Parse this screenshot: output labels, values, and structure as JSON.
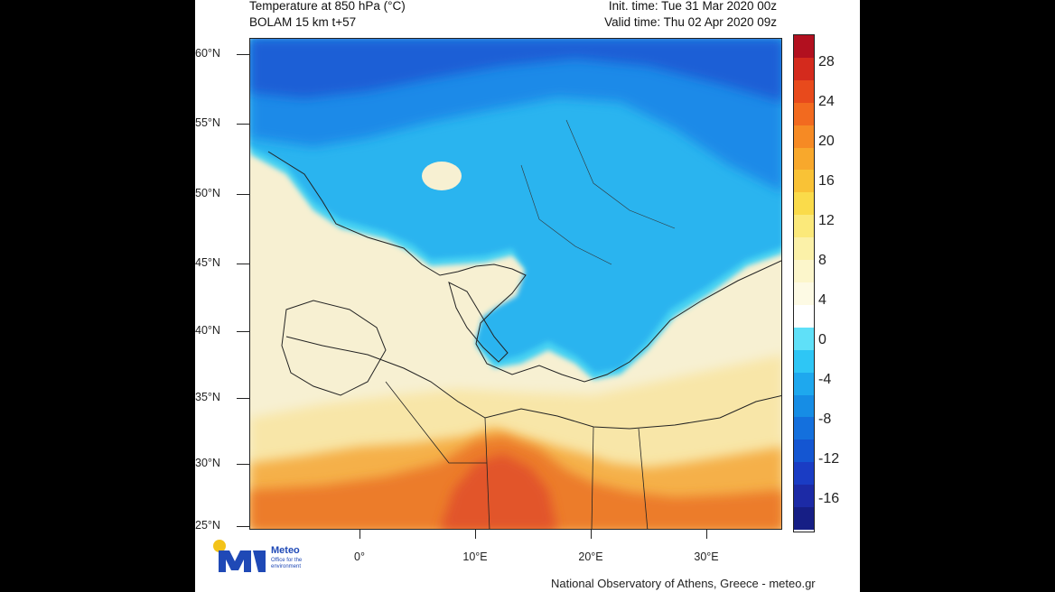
{
  "header": {
    "title_line1": "Temperature at 850 hPa (°C)",
    "title_line2": "BOLAM 15 km t+57",
    "init_time": "Init. time: Tue 31 Mar 2020 00z",
    "valid_time": "Valid time: Thu 02 Apr 2020 09z"
  },
  "map": {
    "lat_labels": [
      "60°N",
      "55°N",
      "50°N",
      "45°N",
      "40°N",
      "35°N",
      "30°N",
      "25°N"
    ],
    "lon_labels": [
      "0°",
      "10°E",
      "20°E",
      "30°E"
    ],
    "colors": {
      "north_deep": "#1a5fd6",
      "north_mid": "#1e8ae8",
      "cold_land": "#2ab4ef",
      "zero_band": "#46d2f2",
      "mild": "#f7f0d2",
      "warm": "#f8e6a8",
      "hot": "#f5b04a",
      "very_hot": "#ec7b2a",
      "hottest": "#e2552a"
    }
  },
  "colorbar": {
    "tick_labels": [
      "28",
      "24",
      "20",
      "16",
      "12",
      "8",
      "4",
      "0",
      "-4",
      "-8",
      "-12",
      "-16"
    ],
    "colors": [
      "#b2101f",
      "#d42a1d",
      "#e84a1c",
      "#f26a1f",
      "#f68a24",
      "#f8a82c",
      "#f9c236",
      "#fadb4a",
      "#fbe97a",
      "#fbf1a8",
      "#fcf6cb",
      "#fdfae4",
      "#ffffff",
      "#5fe0f8",
      "#2ec6f5",
      "#1ea8ee",
      "#168de5",
      "#1470dd",
      "#1456d2",
      "#1a3cc4",
      "#1c2aa6",
      "#161e85"
    ]
  },
  "logo": {
    "name": "Meteo",
    "subtitle": "Office for the environment"
  },
  "footer": {
    "credit": "National Observatory of Athens, Greece - meteo.gr"
  }
}
